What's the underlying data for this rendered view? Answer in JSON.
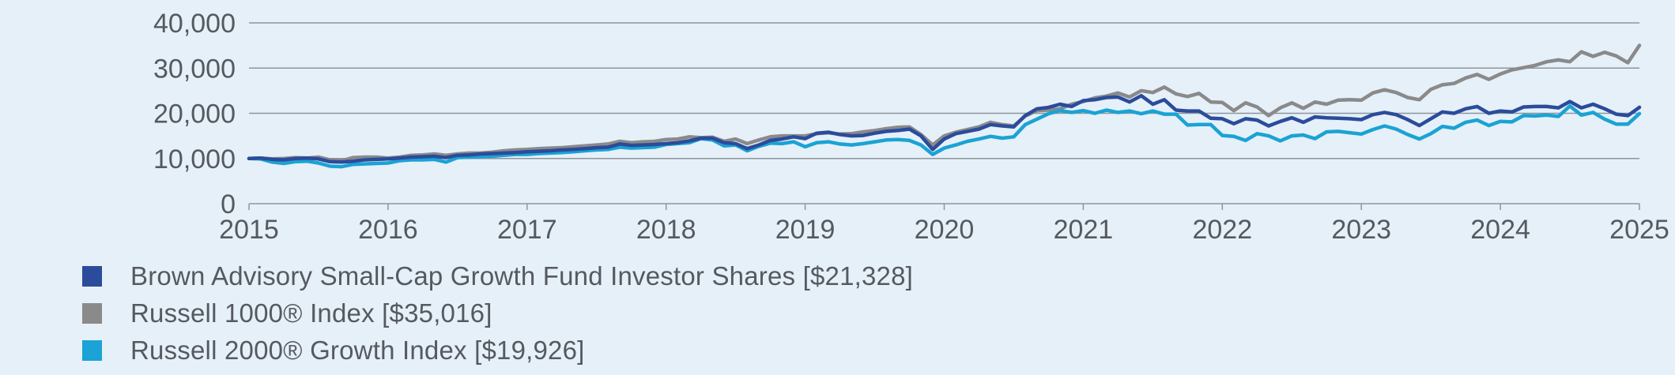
{
  "chart_data": {
    "type": "line",
    "title": "",
    "xlabel": "",
    "ylabel": "",
    "ylim": [
      0,
      40000
    ],
    "xlim": [
      2015,
      2025
    ],
    "yticks": [
      "0",
      "10,000",
      "20,000",
      "30,000",
      "40,000"
    ],
    "ytick_values": [
      0,
      10000,
      20000,
      30000,
      40000
    ],
    "xticks": [
      "2015",
      "2016",
      "2017",
      "2018",
      "2019",
      "2020",
      "2021",
      "2022",
      "2023",
      "2024",
      "2025"
    ],
    "xtick_values": [
      2015,
      2016,
      2017,
      2018,
      2019,
      2020,
      2021,
      2022,
      2023,
      2024,
      2025
    ],
    "grid": true,
    "legend_position": "bottom-left",
    "x": [
      2015.0,
      2015.083,
      2015.167,
      2015.25,
      2015.333,
      2015.417,
      2015.5,
      2015.583,
      2015.667,
      2015.75,
      2015.833,
      2015.917,
      2016.0,
      2016.083,
      2016.167,
      2016.25,
      2016.333,
      2016.417,
      2016.5,
      2016.583,
      2016.667,
      2016.75,
      2016.833,
      2016.917,
      2017.0,
      2017.083,
      2017.167,
      2017.25,
      2017.333,
      2017.417,
      2017.5,
      2017.583,
      2017.667,
      2017.75,
      2017.833,
      2017.917,
      2018.0,
      2018.083,
      2018.167,
      2018.25,
      2018.333,
      2018.417,
      2018.5,
      2018.583,
      2018.667,
      2018.75,
      2018.833,
      2018.917,
      2019.0,
      2019.083,
      2019.167,
      2019.25,
      2019.333,
      2019.417,
      2019.5,
      2019.583,
      2019.667,
      2019.75,
      2019.833,
      2019.917,
      2020.0,
      2020.083,
      2020.167,
      2020.25,
      2020.333,
      2020.417,
      2020.5,
      2020.583,
      2020.667,
      2020.75,
      2020.833,
      2020.917,
      2021.0,
      2021.083,
      2021.167,
      2021.25,
      2021.333,
      2021.417,
      2021.5,
      2021.583,
      2021.667,
      2021.75,
      2021.833,
      2021.917,
      2022.0,
      2022.083,
      2022.167,
      2022.25,
      2022.333,
      2022.417,
      2022.5,
      2022.583,
      2022.667,
      2022.75,
      2022.833,
      2022.917,
      2023.0,
      2023.083,
      2023.167,
      2023.25,
      2023.333,
      2023.417,
      2023.5,
      2023.583,
      2023.667,
      2023.75,
      2023.833,
      2023.917,
      2024.0,
      2024.083,
      2024.167,
      2024.25,
      2024.333,
      2024.417,
      2024.5,
      2024.583,
      2024.667,
      2024.75,
      2024.833,
      2024.917,
      2025.0
    ],
    "series": [
      {
        "name": "Brown Advisory Small-Cap Growth Fund Investor Shares",
        "color": "#2b4c9b",
        "ending_value": 21328,
        "values": [
          10000,
          10100,
          9800,
          9700,
          10000,
          10100,
          9900,
          9300,
          9200,
          9400,
          9700,
          9800,
          9900,
          10100,
          10300,
          10400,
          10500,
          10200,
          10700,
          10800,
          11000,
          11100,
          11200,
          11300,
          11500,
          11600,
          11700,
          11900,
          12000,
          12200,
          12400,
          12500,
          13200,
          12900,
          13000,
          13100,
          13300,
          13500,
          13900,
          14500,
          14500,
          13500,
          13300,
          12200,
          13000,
          14000,
          14300,
          14800,
          14400,
          15600,
          15800,
          15300,
          15000,
          15100,
          15600,
          16000,
          16200,
          16500,
          15000,
          12000,
          14300,
          15500,
          16000,
          16500,
          17500,
          17200,
          17000,
          19500,
          21000,
          21300,
          22000,
          21500,
          22800,
          23000,
          23500,
          23600,
          22500,
          23900,
          22000,
          23000,
          20700,
          20500,
          20500,
          18900,
          18800,
          17700,
          18800,
          18500,
          17200,
          18200,
          19000,
          18000,
          19200,
          19000,
          18900,
          18800,
          18600,
          19700,
          20200,
          19700,
          18600,
          17300,
          18800,
          20300,
          20000,
          21000,
          21500,
          20000,
          20500,
          20300,
          21400,
          21500,
          21500,
          21200,
          22600,
          21200,
          22000,
          21000,
          19800,
          19500,
          21328
        ]
      },
      {
        "name": "Russell 1000® Index",
        "color": "#8a8a8a",
        "ending_value": 35016,
        "values": [
          10000,
          10100,
          9900,
          10000,
          10200,
          10100,
          10300,
          9700,
          9500,
          10200,
          10300,
          10300,
          10100,
          10300,
          10700,
          10800,
          11000,
          10700,
          11000,
          11200,
          11200,
          11400,
          11700,
          11900,
          12000,
          12200,
          12300,
          12400,
          12600,
          12800,
          13000,
          13200,
          13800,
          13500,
          13700,
          13800,
          14200,
          14300,
          14800,
          14600,
          14700,
          13800,
          14300,
          13300,
          14100,
          14800,
          15000,
          15000,
          15000,
          15500,
          15700,
          15400,
          15500,
          15900,
          16200,
          16600,
          16900,
          17000,
          15300,
          13000,
          15000,
          15800,
          16400,
          17000,
          18000,
          17500,
          17200,
          19400,
          20600,
          20700,
          21000,
          22000,
          22600,
          23400,
          23800,
          24500,
          23600,
          25000,
          24600,
          25800,
          24300,
          23700,
          24400,
          22500,
          22400,
          20600,
          22300,
          21400,
          19500,
          21200,
          22300,
          21100,
          22500,
          22000,
          22900,
          23000,
          22900,
          24500,
          25200,
          24600,
          23500,
          23000,
          25300,
          26300,
          26600,
          27800,
          28600,
          27500,
          28700,
          29600,
          30100,
          30600,
          31400,
          31800,
          31400,
          33600,
          32600,
          33500,
          32700,
          31200,
          35016
        ]
      },
      {
        "name": "Russell 2000® Growth Index",
        "color": "#1aa3d4",
        "ending_value": 19926,
        "values": [
          10000,
          9900,
          9200,
          8900,
          9300,
          9400,
          9000,
          8300,
          8200,
          8700,
          8800,
          8900,
          9000,
          9500,
          9700,
          9700,
          9800,
          9200,
          10200,
          10300,
          10400,
          10500,
          10700,
          10900,
          10900,
          11100,
          11200,
          11300,
          11500,
          11700,
          11900,
          12000,
          12500,
          12300,
          12400,
          12500,
          13100,
          13300,
          13500,
          14400,
          14100,
          12800,
          13000,
          11700,
          12700,
          13400,
          13300,
          13700,
          12600,
          13500,
          13700,
          13200,
          13000,
          13300,
          13700,
          14100,
          14200,
          14000,
          13000,
          10900,
          12300,
          13000,
          13800,
          14300,
          14900,
          14500,
          14800,
          17500,
          18700,
          19900,
          20600,
          20200,
          20600,
          20000,
          20700,
          20200,
          20500,
          19900,
          20500,
          19800,
          19800,
          17400,
          17500,
          17500,
          15100,
          14900,
          14000,
          15500,
          15000,
          13900,
          15000,
          15200,
          14400,
          15900,
          16000,
          15700,
          15400,
          16400,
          17200,
          16500,
          15300,
          14300,
          15500,
          17100,
          16700,
          18000,
          18500,
          17300,
          18200,
          18100,
          19500,
          19400,
          19600,
          19300,
          21600,
          19600,
          20200,
          18700,
          17600,
          17600,
          19926
        ]
      }
    ]
  },
  "legend": [
    {
      "label": "Brown Advisory Small-Cap Growth Fund Investor Shares [$21,328]",
      "color": "#2b4c9b"
    },
    {
      "label": "Russell 1000® Index [$35,016]",
      "color": "#8a8a8a"
    },
    {
      "label": "Russell 2000® Growth Index [$19,926]",
      "color": "#1aa3d4"
    }
  ]
}
